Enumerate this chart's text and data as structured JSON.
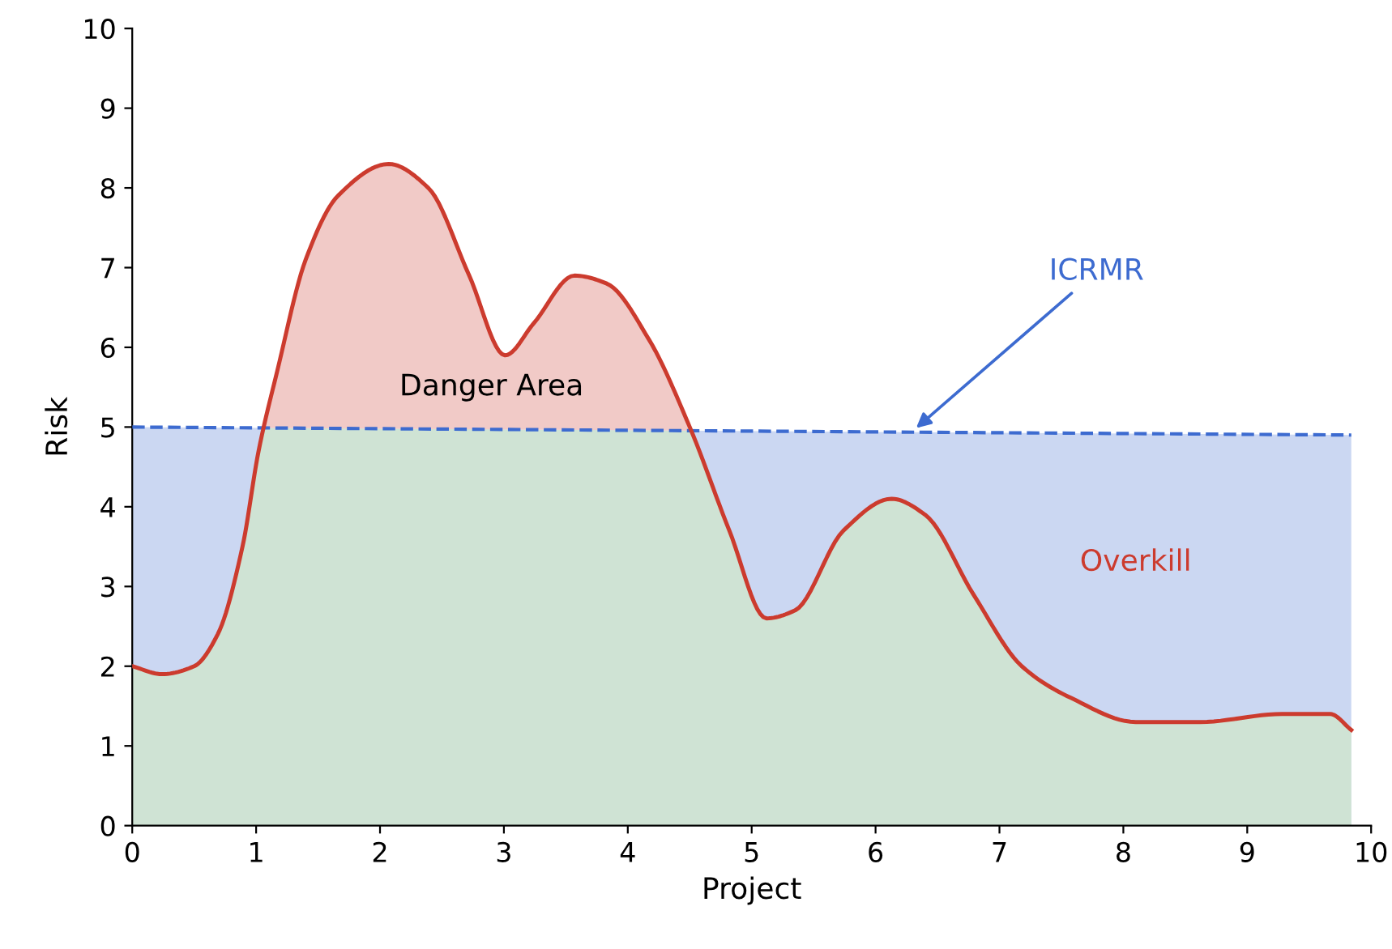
{
  "chart_data": {
    "type": "area",
    "xlabel": "Project",
    "ylabel": "Risk",
    "xlim": [
      0,
      10
    ],
    "ylim": [
      0,
      10
    ],
    "xticks": [
      0,
      1,
      2,
      3,
      4,
      5,
      6,
      7,
      8,
      9,
      10
    ],
    "yticks": [
      0,
      1,
      2,
      3,
      4,
      5,
      6,
      7,
      8,
      9,
      10
    ],
    "grid": false,
    "legend": false,
    "series": [
      {
        "color": "#cc3b2e",
        "x": [
          0,
          0.24,
          0.5,
          0.69,
          0.89,
          1.02,
          1.17,
          1.4,
          1.66,
          2.07,
          2.39,
          2.72,
          3.01,
          3.24,
          3.57,
          3.83,
          4.17,
          4.5,
          4.82,
          5.12,
          5.35,
          5.74,
          6.13,
          6.4,
          6.79,
          7.18,
          7.58,
          8.1,
          8.62,
          9.28,
          9.67,
          9.84
        ],
        "values": [
          2.0,
          1.9,
          2.0,
          2.4,
          3.5,
          4.7,
          5.7,
          7.1,
          7.9,
          8.3,
          8.0,
          6.9,
          5.9,
          6.3,
          6.9,
          6.8,
          6.1,
          5.0,
          3.7,
          2.6,
          2.7,
          3.7,
          4.1,
          3.9,
          2.9,
          2.0,
          1.6,
          1.3,
          1.3,
          1.4,
          1.4,
          1.2
        ]
      },
      {
        "color": "#3d6bd0",
        "line_style": "dashed",
        "x": [
          0,
          9.84
        ],
        "values": [
          5.0,
          4.9
        ]
      }
    ],
    "annotations": [
      "Danger Area",
      "Overkill",
      {
        "text": "ICRMR",
        "x": 6.3,
        "y": 4.95
      }
    ]
  }
}
